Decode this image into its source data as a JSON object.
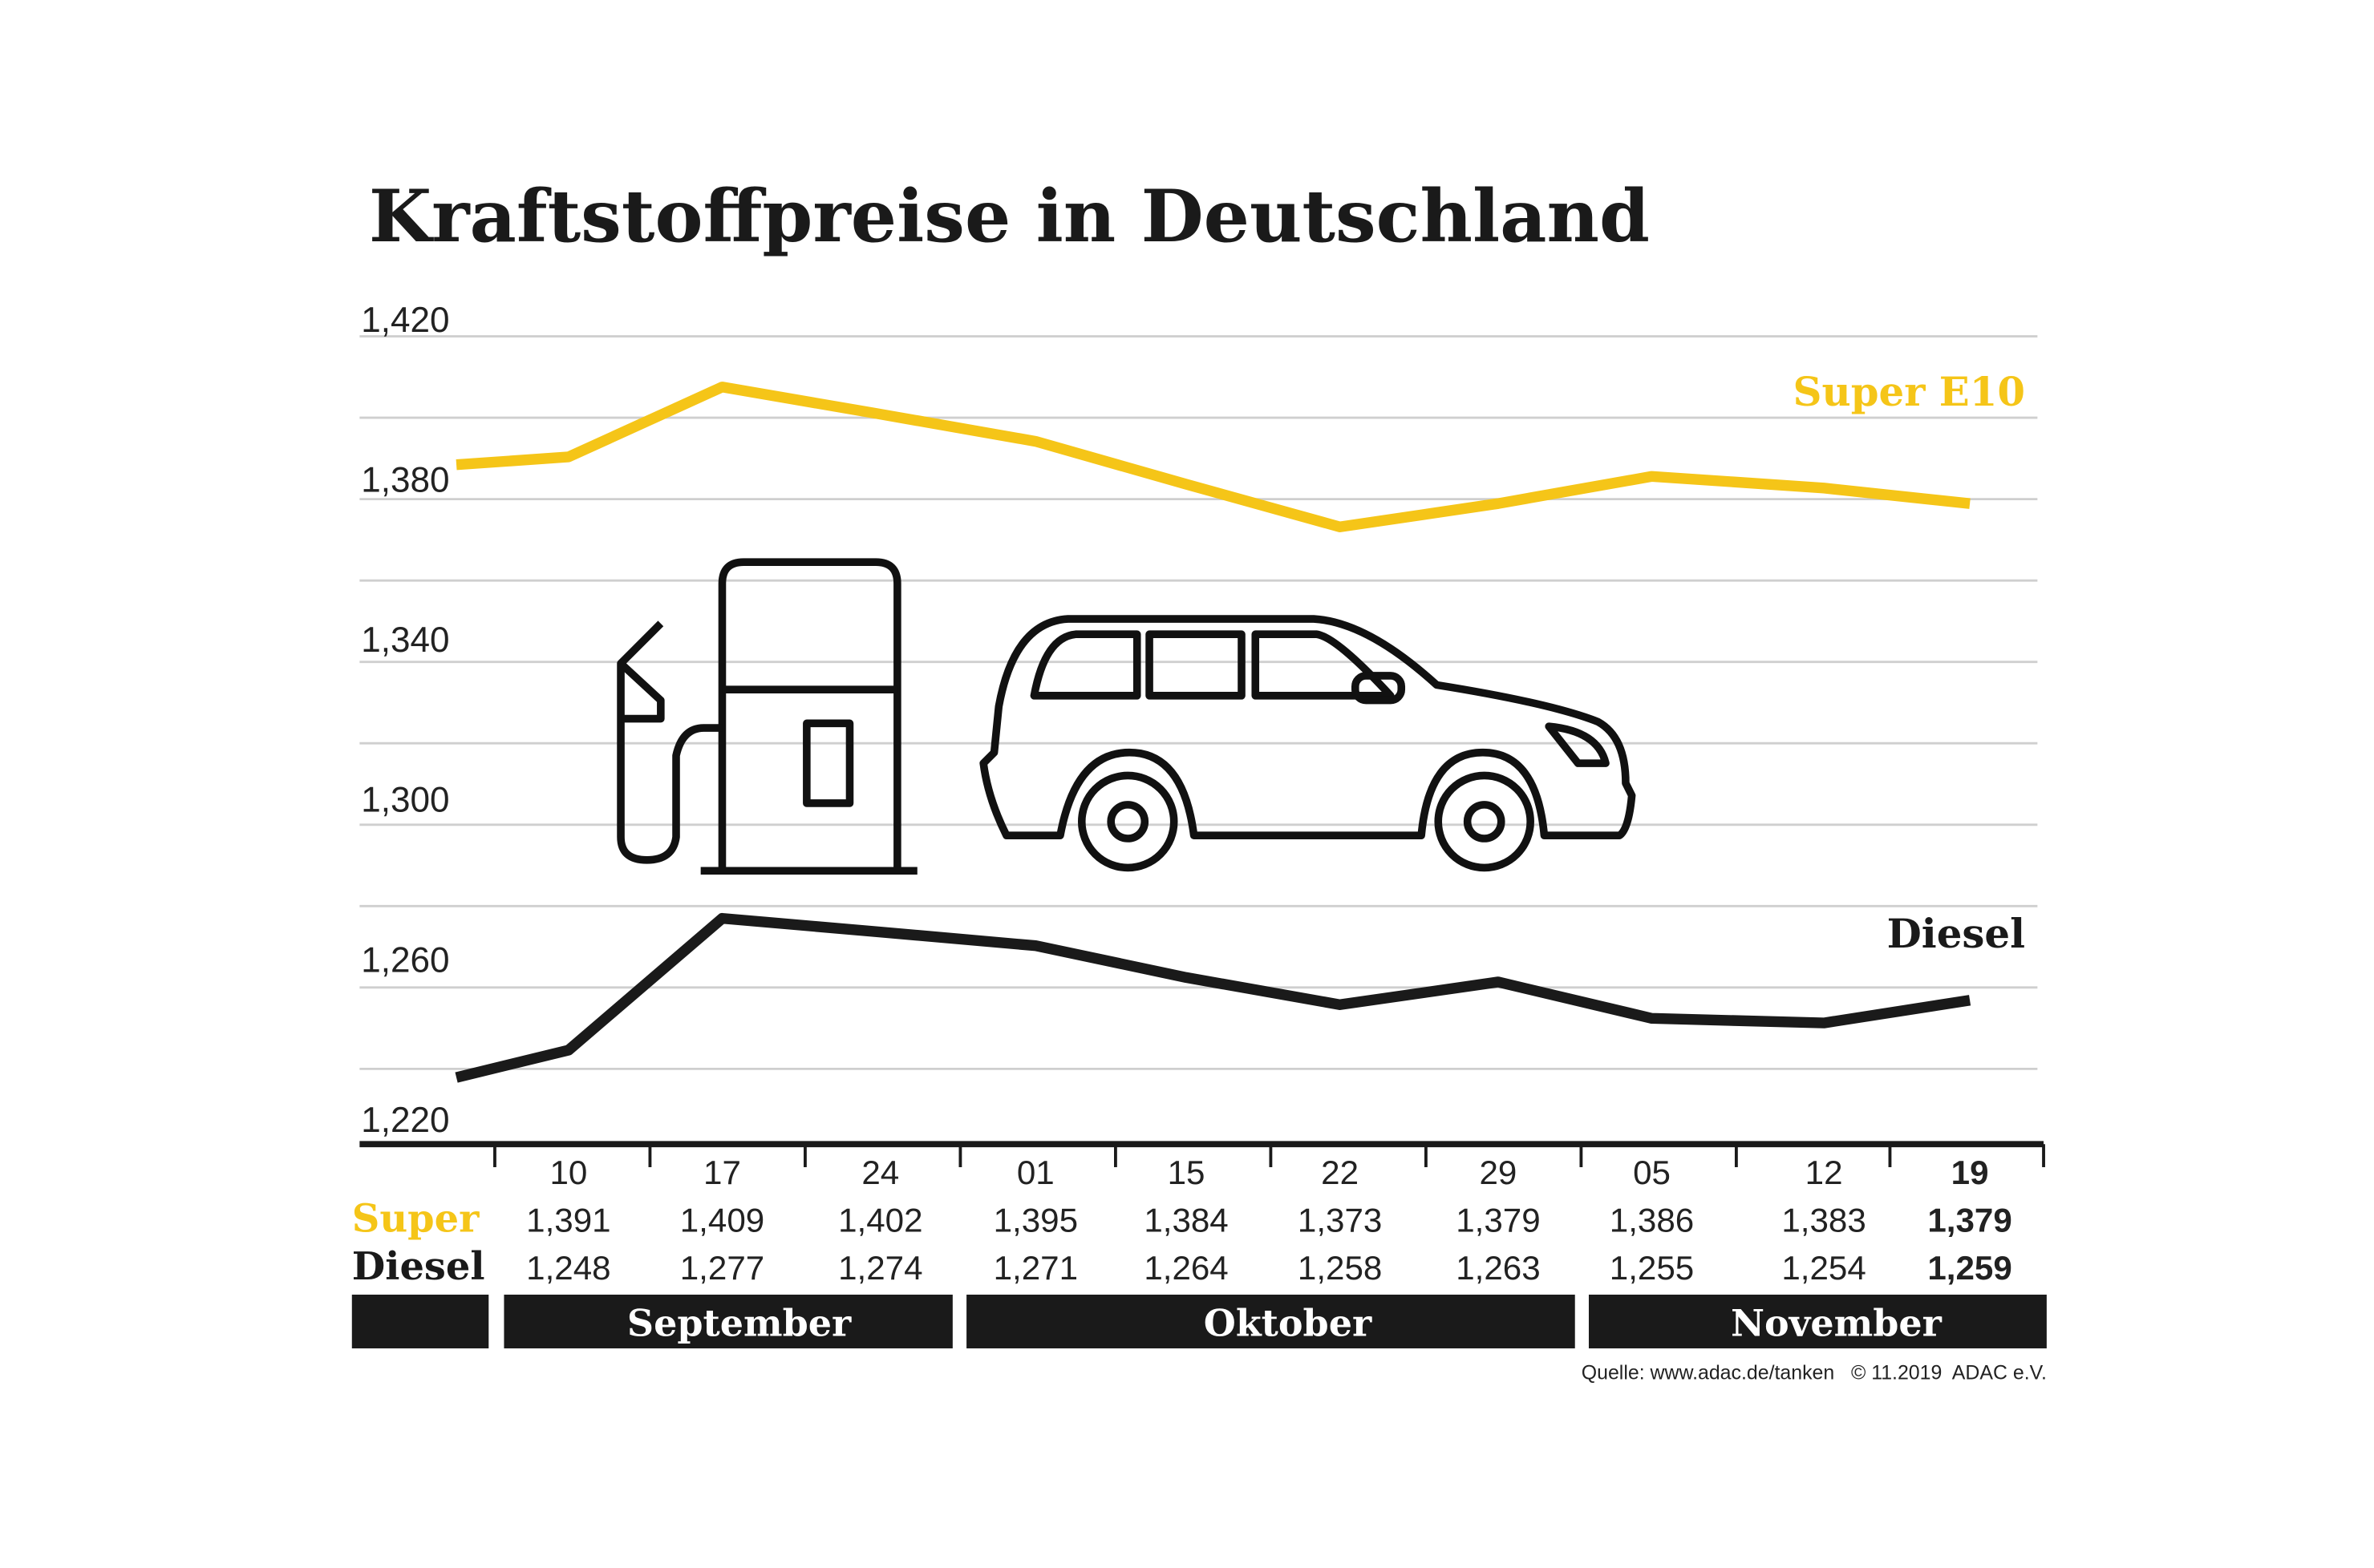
{
  "chart_data": {
    "type": "line",
    "title": "Kraftstoffpreise in Deutschland",
    "yticks": [
      "1,420",
      "1,380",
      "1,340",
      "1,300",
      "1,260",
      "1,220"
    ],
    "categories": [
      "",
      "10",
      "17",
      "24",
      "01",
      "15",
      "22",
      "29",
      "05",
      "12",
      "19"
    ],
    "months": [
      "September",
      "Oktober",
      "November"
    ],
    "grid": true,
    "series": [
      {
        "name": "Super E10",
        "row_label": "Super",
        "color": "#f5c518",
        "values": [
          1389,
          1391,
          1409,
          1402,
          1395,
          1384,
          1373,
          1379,
          1386,
          1383,
          1379
        ],
        "table": [
          "1,391",
          "1,409",
          "1,402",
          "1,395",
          "1,384",
          "1,373",
          "1,379",
          "1,386",
          "1,383",
          "1,379"
        ]
      },
      {
        "name": "Diesel",
        "row_label": "Diesel",
        "color": "#1a1a1a",
        "values": [
          1242,
          1248,
          1277,
          1274,
          1271,
          1264,
          1258,
          1263,
          1255,
          1254,
          1259
        ],
        "table": [
          "1,248",
          "1,277",
          "1,274",
          "1,271",
          "1,264",
          "1,258",
          "1,263",
          "1,255",
          "1,254",
          "1,259"
        ]
      }
    ],
    "source": "Quelle: www.adac.de/tanken   © 11.2019  ADAC e.V."
  },
  "icons": [
    "fuel-pump-icon",
    "car-icon"
  ]
}
